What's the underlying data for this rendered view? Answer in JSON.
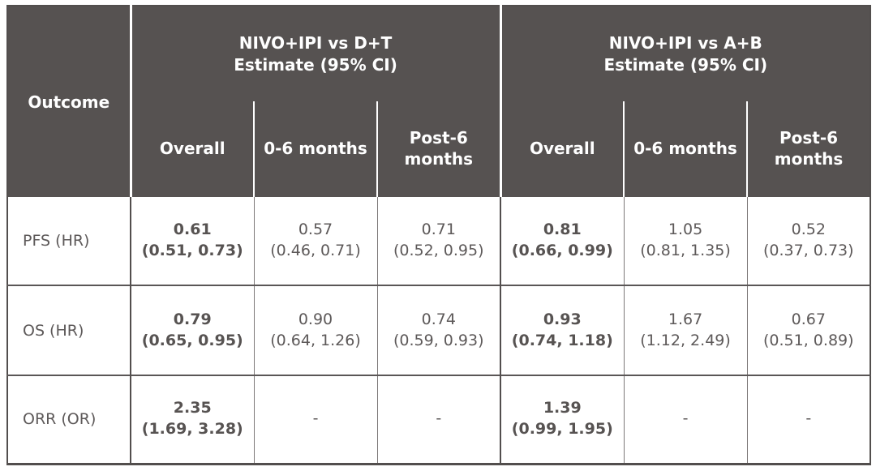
{
  "colors": {
    "header_background": "#565251",
    "header_text": "#ffffff",
    "body_text": "#5d5959",
    "major_border": "#524e4d",
    "minor_border": "#7d7979"
  },
  "chart_data": {
    "type": "table",
    "corner_header": "Outcome",
    "column_groups": [
      {
        "title": "NIVO+IPI vs D+T",
        "subtitle": "Estimate (95% CI)",
        "columns": [
          "Overall",
          "0-6 months",
          "Post-6 months"
        ]
      },
      {
        "title": "NIVO+IPI vs A+B",
        "subtitle": "Estimate (95% CI)",
        "columns": [
          "Overall",
          "0-6 months",
          "Post-6 months"
        ]
      }
    ],
    "rows": [
      {
        "label": "PFS (HR)",
        "cells": [
          {
            "estimate": "0.61",
            "ci": "(0.51, 0.73)",
            "bold": true
          },
          {
            "estimate": "0.57",
            "ci": "(0.46, 0.71)",
            "bold": false
          },
          {
            "estimate": "0.71",
            "ci": "(0.52, 0.95)",
            "bold": false
          },
          {
            "estimate": "0.81",
            "ci": "(0.66, 0.99)",
            "bold": true
          },
          {
            "estimate": "1.05",
            "ci": "(0.81, 1.35)",
            "bold": false
          },
          {
            "estimate": "0.52",
            "ci": "(0.37, 0.73)",
            "bold": false
          }
        ]
      },
      {
        "label": "OS (HR)",
        "cells": [
          {
            "estimate": "0.79",
            "ci": "(0.65, 0.95)",
            "bold": true
          },
          {
            "estimate": "0.90",
            "ci": "(0.64, 1.26)",
            "bold": false
          },
          {
            "estimate": "0.74",
            "ci": "(0.59, 0.93)",
            "bold": false
          },
          {
            "estimate": "0.93",
            "ci": "(0.74, 1.18)",
            "bold": true
          },
          {
            "estimate": "1.67",
            "ci": "(1.12, 2.49)",
            "bold": false
          },
          {
            "estimate": "0.67",
            "ci": "(0.51, 0.89)",
            "bold": false
          }
        ]
      },
      {
        "label": "ORR (OR)",
        "cells": [
          {
            "estimate": "2.35",
            "ci": "(1.69, 3.28)",
            "bold": true
          },
          {
            "estimate": "-",
            "ci": "",
            "bold": false
          },
          {
            "estimate": "-",
            "ci": "",
            "bold": false
          },
          {
            "estimate": "1.39",
            "ci": "(0.99, 1.95)",
            "bold": true
          },
          {
            "estimate": "-",
            "ci": "",
            "bold": false
          },
          {
            "estimate": "-",
            "ci": "",
            "bold": false
          }
        ]
      }
    ]
  }
}
